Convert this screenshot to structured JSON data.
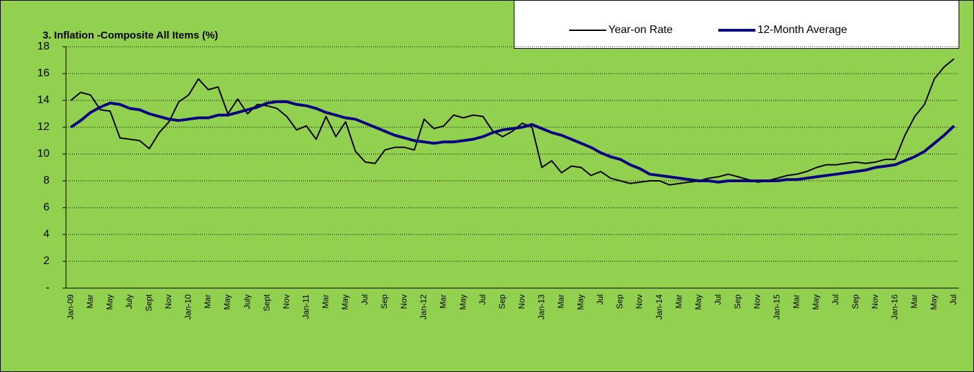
{
  "chart_data": {
    "type": "line",
    "title": "3. Inflation -Composite All Items (%)",
    "categories": [
      "Jan-09",
      null,
      "Mar",
      null,
      "May",
      null,
      "July",
      null,
      "Sept",
      null,
      "Nov",
      null,
      "Jan-10",
      null,
      "Mar",
      null,
      "May",
      null,
      "July",
      null,
      "Sept",
      null,
      "Nov",
      null,
      "Jan-11",
      null,
      "Mar",
      null,
      "May",
      null,
      "Jul",
      null,
      "Sep",
      null,
      "Nov",
      null,
      "Jan-12",
      null,
      "Mar",
      null,
      "May",
      null,
      "Jul",
      null,
      "Sep",
      null,
      "Nov",
      null,
      "Jan-13",
      null,
      "Mar",
      null,
      "May",
      null,
      "Jul",
      null,
      "Sep",
      null,
      "Nov",
      null,
      "Jan-14",
      null,
      "Mar",
      null,
      "May",
      null,
      "Jul",
      null,
      "Sep",
      null,
      "Nov",
      null,
      "Jan-15",
      null,
      "Mar",
      null,
      "May",
      null,
      "Jul",
      null,
      "Sep",
      null,
      "Nov",
      null,
      "Jan-16",
      null,
      "Mar",
      null,
      "May",
      null,
      "Jul"
    ],
    "series": [
      {
        "name": "Year-on Rate",
        "color": "#000000",
        "values": [
          14.0,
          14.6,
          14.4,
          13.3,
          13.2,
          11.2,
          11.1,
          11.0,
          10.4,
          11.6,
          12.4,
          13.9,
          14.4,
          15.6,
          14.8,
          15.0,
          13.0,
          14.1,
          13.0,
          13.7,
          13.6,
          13.4,
          12.8,
          11.8,
          12.1,
          11.1,
          12.8,
          11.3,
          12.4,
          10.2,
          9.4,
          9.3,
          10.3,
          10.5,
          10.5,
          10.3,
          12.6,
          11.9,
          12.1,
          12.9,
          12.7,
          12.9,
          12.8,
          11.7,
          11.3,
          11.7,
          12.3,
          12.0,
          9.0,
          9.5,
          8.6,
          9.1,
          9.0,
          8.4,
          8.7,
          8.2,
          8.0,
          7.8,
          7.9,
          8.0,
          8.0,
          7.7,
          7.8,
          7.9,
          8.0,
          8.2,
          8.3,
          8.5,
          8.3,
          8.1,
          7.9,
          8.0,
          8.2,
          8.4,
          8.5,
          8.7,
          9.0,
          9.2,
          9.2,
          9.3,
          9.4,
          9.3,
          9.4,
          9.6,
          9.6,
          11.4,
          12.8,
          13.7,
          15.6,
          16.5,
          17.1
        ]
      },
      {
        "name": "12-Month Average",
        "color": "#000080",
        "values": [
          12.0,
          12.5,
          13.1,
          13.5,
          13.8,
          13.7,
          13.4,
          13.3,
          13.0,
          12.8,
          12.6,
          12.5,
          12.6,
          12.7,
          12.7,
          12.9,
          12.9,
          13.1,
          13.3,
          13.5,
          13.8,
          13.9,
          13.9,
          13.7,
          13.6,
          13.4,
          13.1,
          12.9,
          12.7,
          12.6,
          12.3,
          12.0,
          11.7,
          11.4,
          11.2,
          11.0,
          10.9,
          10.8,
          10.9,
          10.9,
          11.0,
          11.1,
          11.3,
          11.6,
          11.8,
          11.9,
          12.0,
          12.2,
          11.9,
          11.6,
          11.4,
          11.1,
          10.8,
          10.5,
          10.1,
          9.8,
          9.6,
          9.2,
          8.9,
          8.5,
          8.4,
          8.3,
          8.2,
          8.1,
          8.0,
          8.0,
          7.9,
          8.0,
          8.0,
          8.0,
          8.0,
          8.0,
          8.0,
          8.1,
          8.1,
          8.2,
          8.3,
          8.4,
          8.5,
          8.6,
          8.7,
          8.8,
          9.0,
          9.1,
          9.2,
          9.5,
          9.8,
          10.2,
          10.8,
          11.4,
          12.1
        ]
      }
    ],
    "ylim": [
      0,
      18
    ],
    "yticks": [
      {
        "value": 0,
        "label": "-"
      },
      2,
      4,
      6,
      8,
      10,
      12,
      14,
      16,
      18
    ],
    "grid": true,
    "legend": "top-right"
  }
}
